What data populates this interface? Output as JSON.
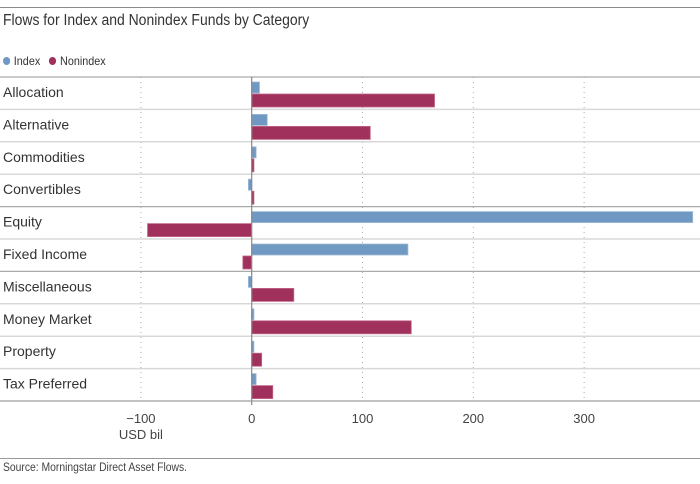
{
  "chart_data": {
    "type": "bar",
    "orientation": "horizontal",
    "title": "Flows for Index and Nonindex Funds by Category",
    "xlabel": "USD bil",
    "ylabel": "",
    "categories": [
      "Allocation",
      "Alternative",
      "Commodities",
      "Convertibles",
      "Equity",
      "Fixed Income",
      "Miscellaneous",
      "Money Market",
      "Property",
      "Tax Preferred"
    ],
    "series": [
      {
        "name": "Index",
        "color": "#6f99c2",
        "values": [
          7,
          14,
          4,
          -3,
          398,
          141,
          -3,
          2,
          2,
          4
        ]
      },
      {
        "name": "Nonindex",
        "color": "#a0305c",
        "values": [
          165,
          107,
          2,
          2,
          -94,
          -8,
          38,
          144,
          9,
          19
        ]
      }
    ],
    "xlim": [
      -135,
      400
    ],
    "xticks": [
      -100,
      0,
      100,
      200,
      300
    ],
    "xtick_labels": [
      "−100",
      "0",
      "100",
      "200",
      "300"
    ],
    "grid": "vertical dotted",
    "legend_position": "top-left",
    "source": "Source: Morningstar Direct Asset Flows."
  }
}
